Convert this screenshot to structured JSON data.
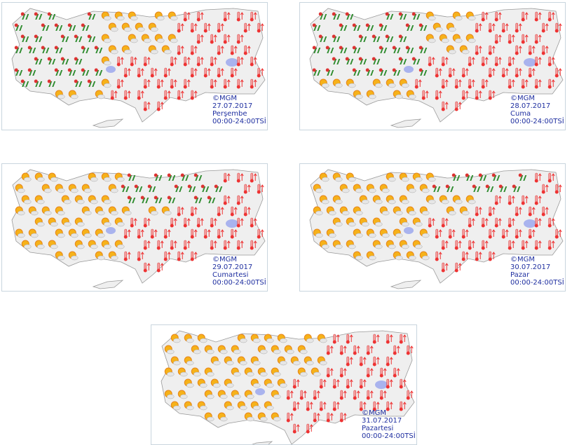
{
  "panels": [
    {
      "copyright": "©MGM",
      "date": "27.07.2017",
      "day": "Perşembe",
      "hours": "00:00-24:00TSİ"
    },
    {
      "copyright": "©MGM",
      "date": "28.07.2017",
      "day": "Cuma",
      "hours": "00:00-24:00TSİ"
    },
    {
      "copyright": "©MGM",
      "date": "29.07.2017",
      "day": "Cumartesi",
      "hours": "00:00-24:00TSİ"
    },
    {
      "copyright": "©MGM",
      "date": "30.07.2017",
      "day": "Pazar",
      "hours": "00:00-24:00TSİ"
    },
    {
      "copyright": "©MGM",
      "date": "31.07.2017",
      "day": "Pazartesi",
      "hours": "00:00-24:00TSİ"
    }
  ]
}
